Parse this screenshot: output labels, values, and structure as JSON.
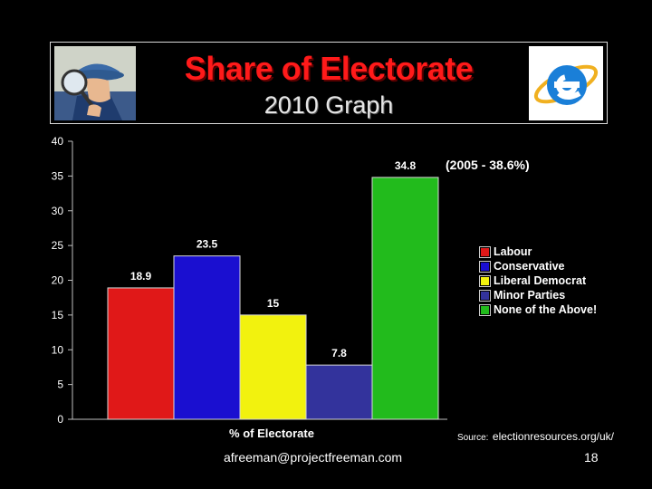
{
  "header": {
    "title": "Share of Electorate",
    "subtitle": "2010 Graph"
  },
  "images": {
    "left": "detective-magnifying-glass-illustration",
    "right": "internet-explorer-icon"
  },
  "chart_data": {
    "type": "bar",
    "categories": [
      "Labour",
      "Conservative",
      "Liberal Democrat",
      "Minor Parties",
      "None of the Above!"
    ],
    "values": [
      18.9,
      23.5,
      15,
      7.8,
      34.8
    ],
    "data_labels": [
      "18.9",
      "23.5",
      "15",
      "7.8",
      "34.8"
    ],
    "colors": [
      "#e01818",
      "#1a0fd0",
      "#f2f20e",
      "#33339c",
      "#22bb1c"
    ],
    "xlabel": "% of Electorate",
    "ylabel": "",
    "ylim": [
      0,
      40
    ],
    "yticks": [
      0,
      5,
      10,
      15,
      20,
      25,
      30,
      35,
      40
    ],
    "grid": false,
    "legend_position": "right",
    "annotation": "(2005 - 38.6%)"
  },
  "footer": {
    "source_prefix": "Source:",
    "source_url": "electionresources.org/uk/",
    "email": "afreeman@projectfreeman.com",
    "page_number": "18"
  }
}
